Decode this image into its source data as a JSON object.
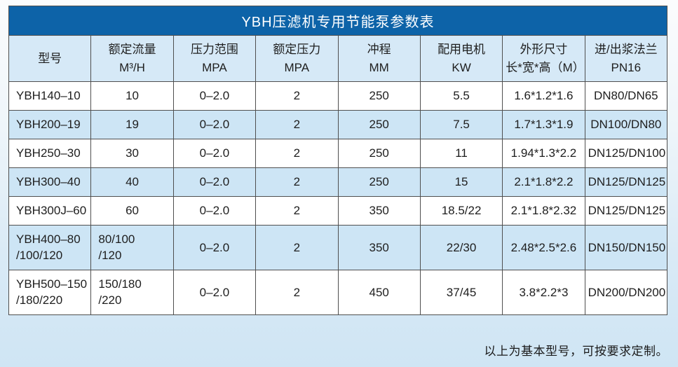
{
  "title": "YBH压滤机专用节能泵参数表",
  "table": {
    "columns": [
      "型号",
      "额定流量\nM³/H",
      "压力范围\nMPA",
      "额定压力\nMPA",
      "冲程\nMM",
      "配用电机\nKW",
      "外形尺寸\n长*宽*高（M）",
      "进/出浆法兰\nPN16"
    ],
    "rows": [
      [
        "YBH140–10",
        "10",
        "0–2.0",
        "2",
        "250",
        "5.5",
        "1.6*1.2*1.6",
        "DN80/DN65"
      ],
      [
        "YBH200–19",
        "19",
        "0–2.0",
        "2",
        "250",
        "7.5",
        "1.7*1.3*1.9",
        "DN100/DN80"
      ],
      [
        "YBH250–30",
        "30",
        "0–2.0",
        "2",
        "250",
        "11",
        "1.94*1.3*2.2",
        "DN125/DN100"
      ],
      [
        "YBH300–40",
        "40",
        "0–2.0",
        "2",
        "250",
        "15",
        "2.1*1.8*2.2",
        "DN125/DN125"
      ],
      [
        "YBH300J–60",
        "60",
        "0–2.0",
        "2",
        "350",
        "18.5/22",
        "2.1*1.8*2.32",
        "DN125/DN125"
      ],
      [
        "YBH400–80\n/100/120",
        "80/100\n/120",
        "0–2.0",
        "2",
        "350",
        "22/30",
        "2.48*2.5*2.6",
        "DN150/DN150"
      ],
      [
        "YBH500–150\n/180/220",
        "150/180\n/220",
        "0–2.0",
        "2",
        "450",
        "37/45",
        "3.8*2.2*3",
        "DN200/DN200"
      ]
    ]
  },
  "footer_note": "以上为基本型号，可按要求定制。",
  "colors": {
    "title_bar": "#0d63a8",
    "header_bg": "#d6e9f7",
    "stripe_bg": "#cde5f5",
    "border": "#4f4f4f"
  }
}
